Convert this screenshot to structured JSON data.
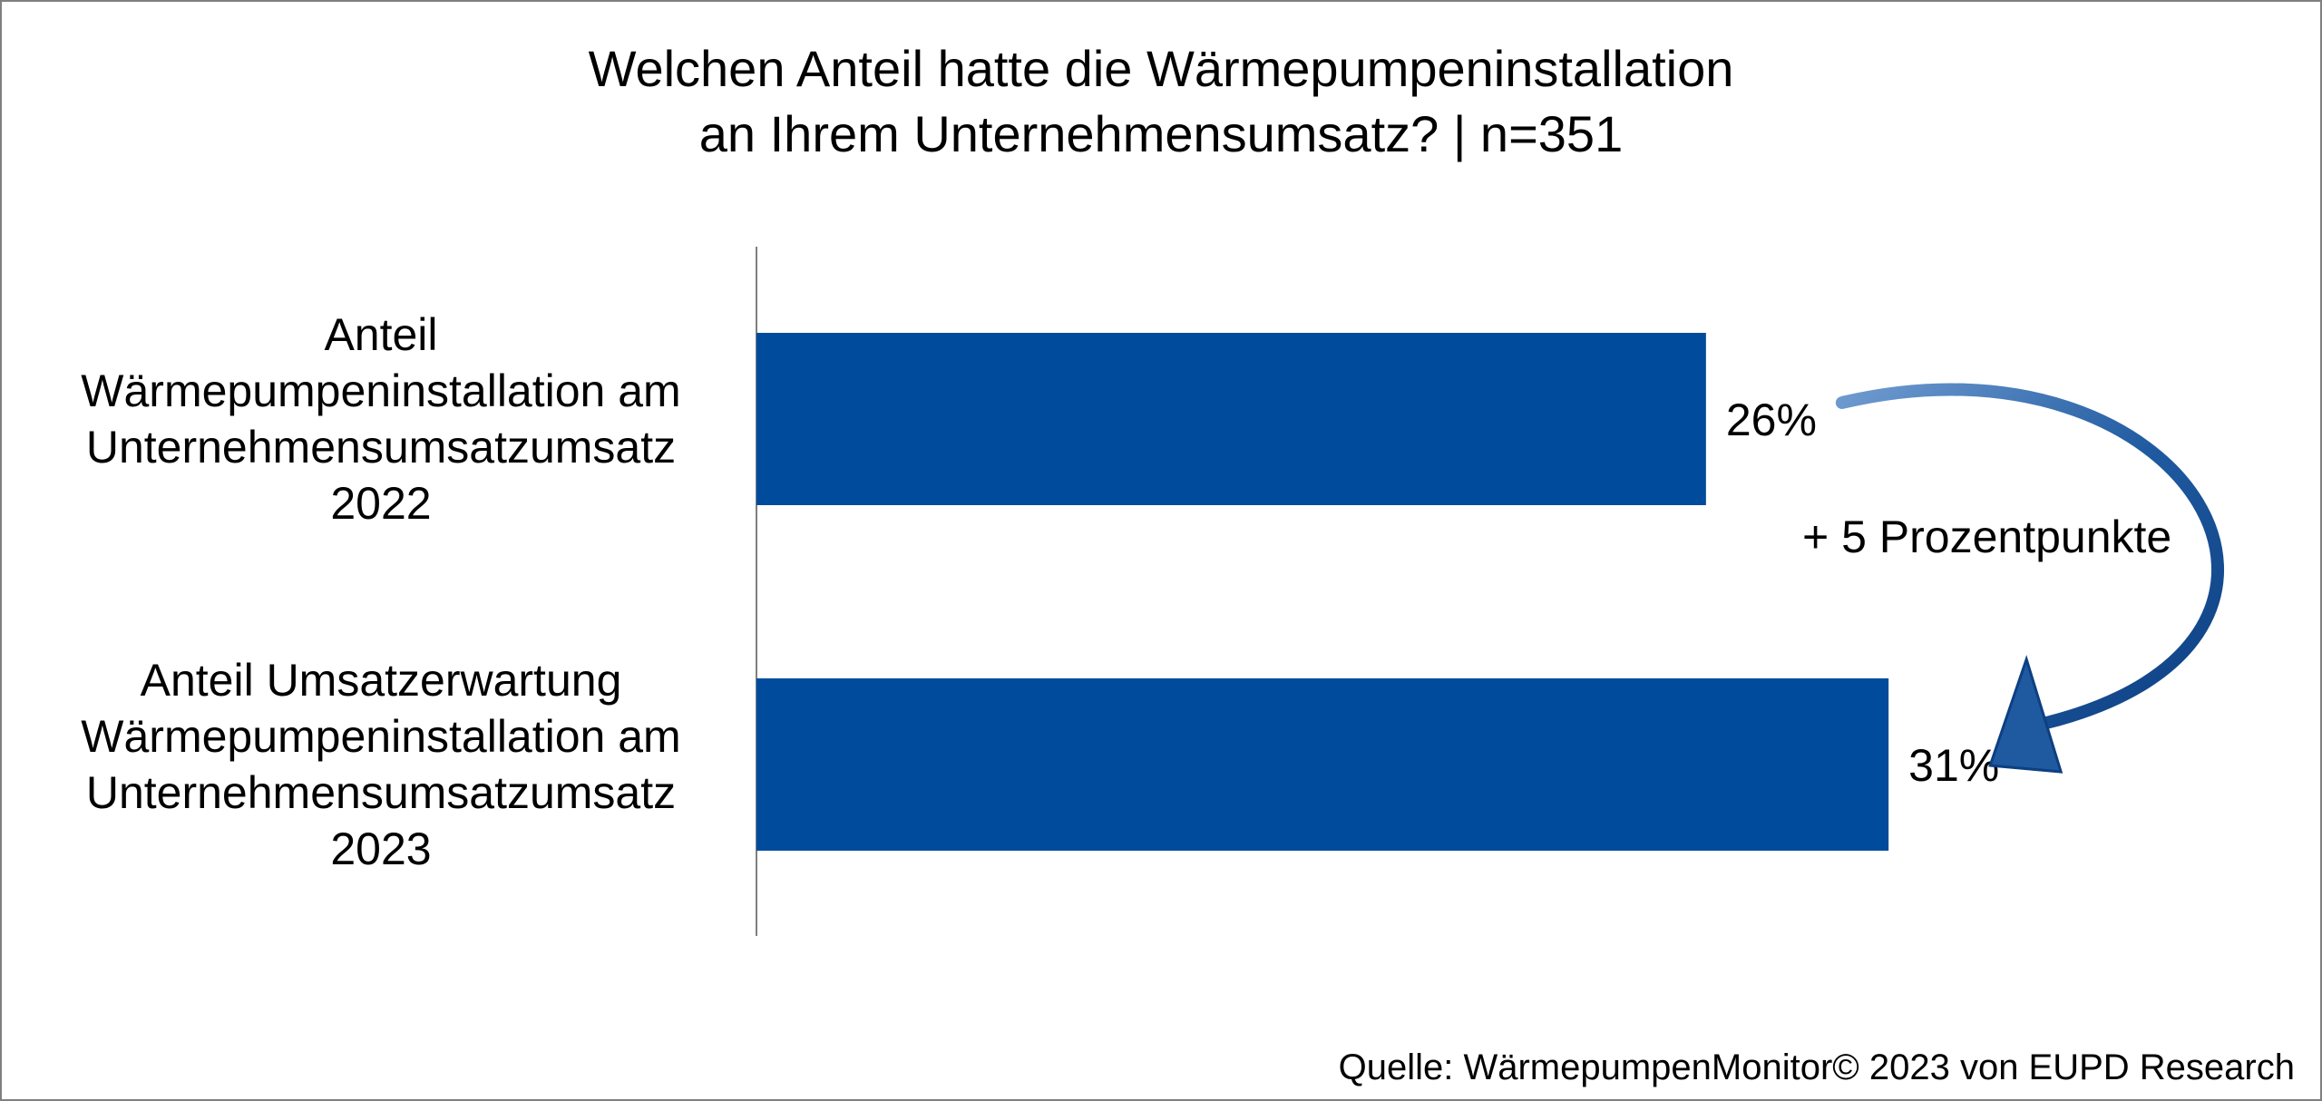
{
  "chart_data": {
    "type": "bar",
    "orientation": "horizontal",
    "title_lines": [
      "Welchen Anteil hatte die Wärmepumpeninstallation",
      "an Ihrem Unternehmensumsatz? | n=351"
    ],
    "categories": [
      [
        "Anteil",
        "Wärmepumpeninstallation am",
        "Unternehmensumsatzumsatz",
        "2022"
      ],
      [
        "Anteil Umsatzerwartung",
        "Wärmepumpeninstallation am",
        "Unternehmensumsatzumsatz",
        "2023"
      ]
    ],
    "values": [
      26,
      31
    ],
    "value_labels": [
      "26%",
      "31%"
    ],
    "xlim": [
      0,
      38
    ],
    "grid": false,
    "bar_color": "#004b9c",
    "annotation": {
      "text": "+ 5 Prozentpunkte",
      "arrow_color": "#1f5aa0"
    },
    "source": "Quelle: WärmepumpenMonitor©  2023 von EUPD Research"
  }
}
